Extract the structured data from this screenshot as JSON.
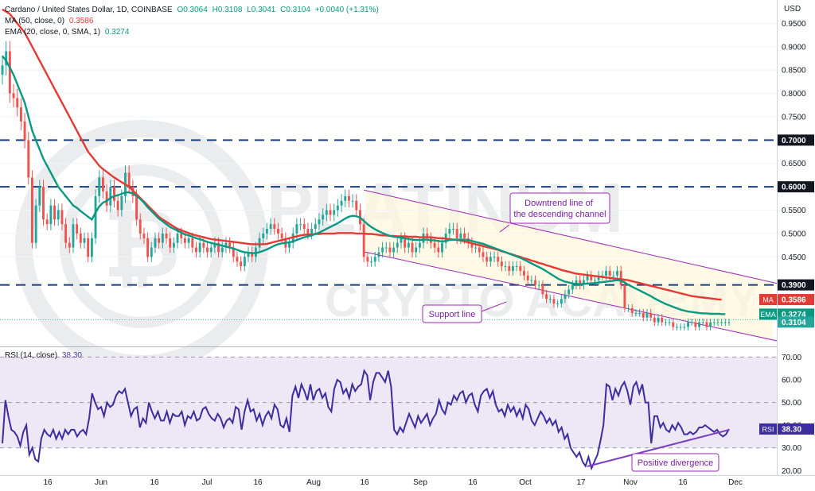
{
  "header": {
    "symbol": "Cardano / United States Dollar, 1D, COINBASE",
    "open": "O0.3064",
    "high": "H0.3108",
    "low": "L0.3041",
    "close": "C0.3104",
    "change": "+0.0040 (+1.31%)",
    "ma_label": "MA (50, close, 0)",
    "ma_value": "0.3586",
    "ema_label": "EMA (20, close, 0, SMA, 1)",
    "ema_value": "0.3274",
    "rsi_label": "RSI (14, close)",
    "rsi_value": "38.30"
  },
  "currency": "USD",
  "watermark": {
    "line1": "PLATINUM",
    "line2": "CRYPTO ACADEMY"
  },
  "colors": {
    "up": "#26a69a",
    "down": "#ef5350",
    "ma": "#e53935",
    "ema": "#089981",
    "rsi": "#3c2e9e",
    "level": "#1a3e7c",
    "channel": "#9c27b0",
    "annotation": "#9c27b0",
    "rsi_band": "#ede7f6",
    "channel_fill": "#fff9e6"
  },
  "chart_data": {
    "type": "candlestick",
    "title": "Cardano / United States Dollar, 1D, COINBASE",
    "x_tick_labels": [
      "16",
      "Jun",
      "16",
      "Jul",
      "16",
      "Aug",
      "16",
      "Sep",
      "16",
      "Oct",
      "17",
      "Nov",
      "16",
      "Dec"
    ],
    "y_tick_labels": [
      "0.9500",
      "0.9000",
      "0.8500",
      "0.8000",
      "0.7500",
      "0.6500",
      "0.5500",
      "0.5000",
      "0.4500"
    ],
    "ylim": [
      0.26,
      1.0
    ],
    "horizontal_levels": [
      {
        "label": "0.7000",
        "value": 0.7
      },
      {
        "label": "0.6000",
        "value": 0.6
      },
      {
        "label": "0.3900",
        "value": 0.39
      }
    ],
    "price_badges": [
      {
        "name": "MA",
        "label": "0.3586",
        "value": 0.3586
      },
      {
        "name": "EMA",
        "label": "0.3274",
        "value": 0.3274
      },
      {
        "name": "",
        "label": "0.3104",
        "value": 0.3104
      }
    ],
    "annotations": {
      "downtrend": "Downtrend line of the descending channel",
      "support": "Support line",
      "divergence": "Positive divergence"
    },
    "channel": {
      "upper": [
        [
          0,
          0.593
        ],
        [
          196,
          0.393
        ]
      ],
      "lower": [
        [
          0,
          0.461
        ],
        [
          196,
          0.27
        ]
      ]
    },
    "close": [
      0.86,
      0.89,
      0.8,
      0.79,
      0.77,
      0.74,
      0.7,
      0.62,
      0.48,
      0.56,
      0.6,
      0.53,
      0.52,
      0.56,
      0.53,
      0.55,
      0.52,
      0.48,
      0.47,
      0.52,
      0.5,
      0.48,
      0.49,
      0.45,
      0.49,
      0.58,
      0.62,
      0.59,
      0.56,
      0.6,
      0.57,
      0.55,
      0.58,
      0.63,
      0.6,
      0.58,
      0.53,
      0.5,
      0.49,
      0.45,
      0.47,
      0.49,
      0.48,
      0.5,
      0.49,
      0.47,
      0.48,
      0.5,
      0.49,
      0.48,
      0.49,
      0.47,
      0.46,
      0.48,
      0.47,
      0.46,
      0.47,
      0.48,
      0.46,
      0.47,
      0.48,
      0.47,
      0.45,
      0.44,
      0.43,
      0.45,
      0.46,
      0.45,
      0.47,
      0.49,
      0.5,
      0.51,
      0.52,
      0.51,
      0.5,
      0.49,
      0.47,
      0.48,
      0.5,
      0.52,
      0.52,
      0.51,
      0.5,
      0.51,
      0.52,
      0.53,
      0.54,
      0.55,
      0.54,
      0.55,
      0.56,
      0.57,
      0.58,
      0.57,
      0.57,
      0.55,
      0.52,
      0.45,
      0.44,
      0.44,
      0.45,
      0.46,
      0.47,
      0.47,
      0.46,
      0.47,
      0.48,
      0.49,
      0.47,
      0.48,
      0.46,
      0.47,
      0.48,
      0.5,
      0.49,
      0.48,
      0.47,
      0.46,
      0.48,
      0.5,
      0.51,
      0.51,
      0.49,
      0.5,
      0.49,
      0.48,
      0.47,
      0.47,
      0.46,
      0.45,
      0.44,
      0.45,
      0.45,
      0.44,
      0.43,
      0.43,
      0.42,
      0.43,
      0.43,
      0.42,
      0.41,
      0.4,
      0.4,
      0.39,
      0.39,
      0.37,
      0.36,
      0.36,
      0.35,
      0.35,
      0.36,
      0.37,
      0.38,
      0.39,
      0.4,
      0.39,
      0.4,
      0.41,
      0.4,
      0.4,
      0.41,
      0.41,
      0.42,
      0.41,
      0.41,
      0.42,
      0.39,
      0.34,
      0.34,
      0.33,
      0.33,
      0.33,
      0.32,
      0.33,
      0.32,
      0.31,
      0.32,
      0.31,
      0.31,
      0.31,
      0.3,
      0.3,
      0.3,
      0.3,
      0.31,
      0.31,
      0.3,
      0.31,
      0.31,
      0.3,
      0.31,
      0.31,
      0.31,
      0.31,
      0.31,
      0.31
    ],
    "ma50": [
      0.98,
      0.975,
      0.97,
      0.96,
      0.95,
      0.94,
      0.93,
      0.915,
      0.9,
      0.885,
      0.87,
      0.855,
      0.84,
      0.825,
      0.81,
      0.795,
      0.78,
      0.765,
      0.75,
      0.735,
      0.72,
      0.705,
      0.69,
      0.675,
      0.665,
      0.655,
      0.645,
      0.638,
      0.632,
      0.626,
      0.62,
      0.615,
      0.61,
      0.605,
      0.6,
      0.592,
      0.584,
      0.576,
      0.568,
      0.56,
      0.552,
      0.544,
      0.536,
      0.53,
      0.525,
      0.52,
      0.515,
      0.51,
      0.507,
      0.504,
      0.501,
      0.498,
      0.496,
      0.494,
      0.492,
      0.49,
      0.488,
      0.487,
      0.486,
      0.485,
      0.484,
      0.483,
      0.482,
      0.481,
      0.48,
      0.479,
      0.478,
      0.477,
      0.477,
      0.477,
      0.477,
      0.478,
      0.48,
      0.482,
      0.484,
      0.486,
      0.488,
      0.49,
      0.492,
      0.494,
      0.496,
      0.497,
      0.498,
      0.498,
      0.499,
      0.499,
      0.5,
      0.5,
      0.5,
      0.5,
      0.501,
      0.501,
      0.501,
      0.501,
      0.501,
      0.5,
      0.5,
      0.5,
      0.499,
      0.499,
      0.498,
      0.497,
      0.496,
      0.496,
      0.495,
      0.495,
      0.494,
      0.494,
      0.494,
      0.493,
      0.493,
      0.493,
      0.492,
      0.492,
      0.492,
      0.492,
      0.491,
      0.49,
      0.49,
      0.489,
      0.488,
      0.487,
      0.486,
      0.485,
      0.483,
      0.481,
      0.479,
      0.477,
      0.475,
      0.473,
      0.471,
      0.469,
      0.467,
      0.465,
      0.462,
      0.46,
      0.457,
      0.455,
      0.452,
      0.45,
      0.447,
      0.445,
      0.442,
      0.44,
      0.437,
      0.435,
      0.432,
      0.43,
      0.427,
      0.425,
      0.422,
      0.42,
      0.418,
      0.416,
      0.414,
      0.413,
      0.412,
      0.411,
      0.41,
      0.409,
      0.408,
      0.407,
      0.406,
      0.405,
      0.404,
      0.403,
      0.402,
      0.401,
      0.4,
      0.398,
      0.396,
      0.394,
      0.392,
      0.39,
      0.388,
      0.386,
      0.384,
      0.382,
      0.38,
      0.378,
      0.376,
      0.374,
      0.372,
      0.37,
      0.368,
      0.366,
      0.365,
      0.364,
      0.363,
      0.362,
      0.361,
      0.36,
      0.359,
      0.3586
    ],
    "ema20": [
      0.88,
      0.87,
      0.855,
      0.84,
      0.82,
      0.8,
      0.78,
      0.75,
      0.72,
      0.7,
      0.68,
      0.66,
      0.645,
      0.63,
      0.615,
      0.6,
      0.59,
      0.58,
      0.57,
      0.56,
      0.555,
      0.548,
      0.542,
      0.536,
      0.53,
      0.545,
      0.558,
      0.566,
      0.57,
      0.576,
      0.58,
      0.582,
      0.585,
      0.588,
      0.588,
      0.586,
      0.58,
      0.574,
      0.566,
      0.556,
      0.548,
      0.54,
      0.532,
      0.526,
      0.52,
      0.514,
      0.51,
      0.506,
      0.502,
      0.498,
      0.496,
      0.493,
      0.49,
      0.488,
      0.485,
      0.482,
      0.48,
      0.478,
      0.476,
      0.474,
      0.472,
      0.47,
      0.468,
      0.465,
      0.462,
      0.46,
      0.459,
      0.458,
      0.458,
      0.46,
      0.463,
      0.466,
      0.47,
      0.474,
      0.477,
      0.479,
      0.48,
      0.481,
      0.483,
      0.486,
      0.489,
      0.492,
      0.494,
      0.496,
      0.499,
      0.502,
      0.506,
      0.51,
      0.514,
      0.518,
      0.522,
      0.527,
      0.532,
      0.536,
      0.538,
      0.537,
      0.534,
      0.527,
      0.52,
      0.514,
      0.509,
      0.505,
      0.501,
      0.498,
      0.495,
      0.493,
      0.492,
      0.491,
      0.49,
      0.488,
      0.487,
      0.486,
      0.486,
      0.487,
      0.487,
      0.486,
      0.485,
      0.484,
      0.483,
      0.484,
      0.486,
      0.487,
      0.487,
      0.487,
      0.487,
      0.486,
      0.484,
      0.482,
      0.48,
      0.478,
      0.475,
      0.472,
      0.469,
      0.466,
      0.463,
      0.46,
      0.457,
      0.454,
      0.451,
      0.448,
      0.444,
      0.44,
      0.436,
      0.432,
      0.428,
      0.424,
      0.419,
      0.414,
      0.409,
      0.404,
      0.4,
      0.397,
      0.395,
      0.393,
      0.392,
      0.392,
      0.392,
      0.393,
      0.393,
      0.394,
      0.395,
      0.396,
      0.397,
      0.398,
      0.399,
      0.4,
      0.399,
      0.395,
      0.39,
      0.386,
      0.382,
      0.378,
      0.374,
      0.37,
      0.366,
      0.361,
      0.357,
      0.353,
      0.349,
      0.346,
      0.343,
      0.34,
      0.337,
      0.335,
      0.333,
      0.332,
      0.331,
      0.33,
      0.329,
      0.329,
      0.328,
      0.328,
      0.328,
      0.3275,
      0.3274
    ],
    "rsi": {
      "label": "RSI (14, close)",
      "ylim": [
        18,
        74
      ],
      "y_tick_labels": [
        "70.00",
        "60.00",
        "50.00",
        "40.00",
        "30.00",
        "20.00"
      ],
      "band": [
        30,
        70
      ],
      "mid": 50,
      "badge": "38.30",
      "values": [
        32,
        51,
        44,
        38,
        37,
        35,
        31,
        37,
        40,
        27,
        30,
        25,
        24,
        34,
        38,
        36,
        35,
        38,
        34,
        37,
        34,
        38,
        36,
        38,
        38,
        35,
        37,
        38,
        36,
        43,
        54,
        50,
        47,
        48,
        44,
        50,
        48,
        49,
        53,
        55,
        54,
        56,
        50,
        44,
        47,
        48,
        39,
        43,
        41,
        50,
        46,
        43,
        46,
        42,
        42,
        46,
        41,
        45,
        44,
        44,
        46,
        40,
        44,
        43,
        46,
        42,
        43,
        47,
        48,
        45,
        43,
        42,
        45,
        43,
        39,
        42,
        43,
        41,
        48,
        47,
        38,
        46,
        51,
        46,
        47,
        42,
        45,
        40,
        44,
        46,
        43,
        49,
        47,
        40,
        39,
        43,
        37,
        53,
        57,
        52,
        58,
        55,
        51,
        58,
        51,
        55,
        56,
        52,
        54,
        48,
        46,
        56,
        60,
        59,
        54,
        56,
        52,
        58,
        55,
        57,
        58,
        64,
        62,
        51,
        59,
        63,
        63,
        61,
        59,
        64,
        57,
        38,
        36,
        39,
        37,
        41,
        45,
        42,
        39,
        44,
        41,
        43,
        45,
        40,
        43,
        45,
        51,
        47,
        45,
        50,
        49,
        53,
        51,
        54,
        55,
        50,
        53,
        54,
        49,
        46,
        53,
        55,
        56,
        52,
        55,
        49,
        46,
        47,
        44,
        49,
        46,
        48,
        44,
        47,
        43,
        49,
        47,
        42,
        40,
        43,
        46,
        44,
        41,
        43,
        40,
        42,
        37,
        39,
        34,
        36,
        30,
        28,
        26,
        28,
        24,
        22,
        26,
        21,
        24,
        27,
        33,
        40,
        58,
        57,
        51,
        56,
        53,
        57,
        59,
        55,
        49,
        57,
        59,
        54,
        58,
        50,
        50,
        32,
        44,
        44,
        39,
        41,
        38,
        37,
        40,
        38,
        41,
        39,
        36,
        36,
        37,
        36,
        37,
        39,
        39,
        40,
        39,
        38,
        37,
        38,
        36,
        35,
        36,
        38.3
      ]
    }
  }
}
